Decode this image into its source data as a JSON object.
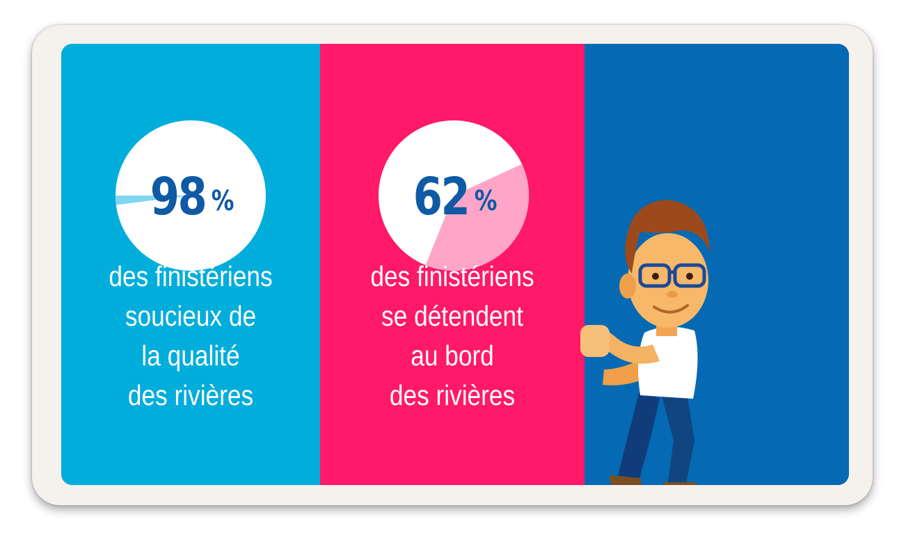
{
  "stats": [
    {
      "value": "98",
      "unit": "%",
      "percent": 98,
      "caption_lines": [
        "des finistériens",
        "soucieux de",
        "la qualité",
        "des rivières"
      ]
    },
    {
      "value": "62",
      "unit": "%",
      "percent": 62,
      "caption_lines": [
        "des finistériens",
        "se détendent",
        "au bord",
        "des rivières"
      ]
    }
  ],
  "colors": {
    "panel_blue": "#00addb",
    "panel_pink": "#ff1968",
    "panel_dark_blue": "#0569b3",
    "number_text": "#0f5aa5",
    "pie_rest_blue": "#7fd6ef",
    "pie_rest_pink": "#ffa6c8"
  },
  "illustration": {
    "icon": "man-with-glasses-illustration"
  }
}
